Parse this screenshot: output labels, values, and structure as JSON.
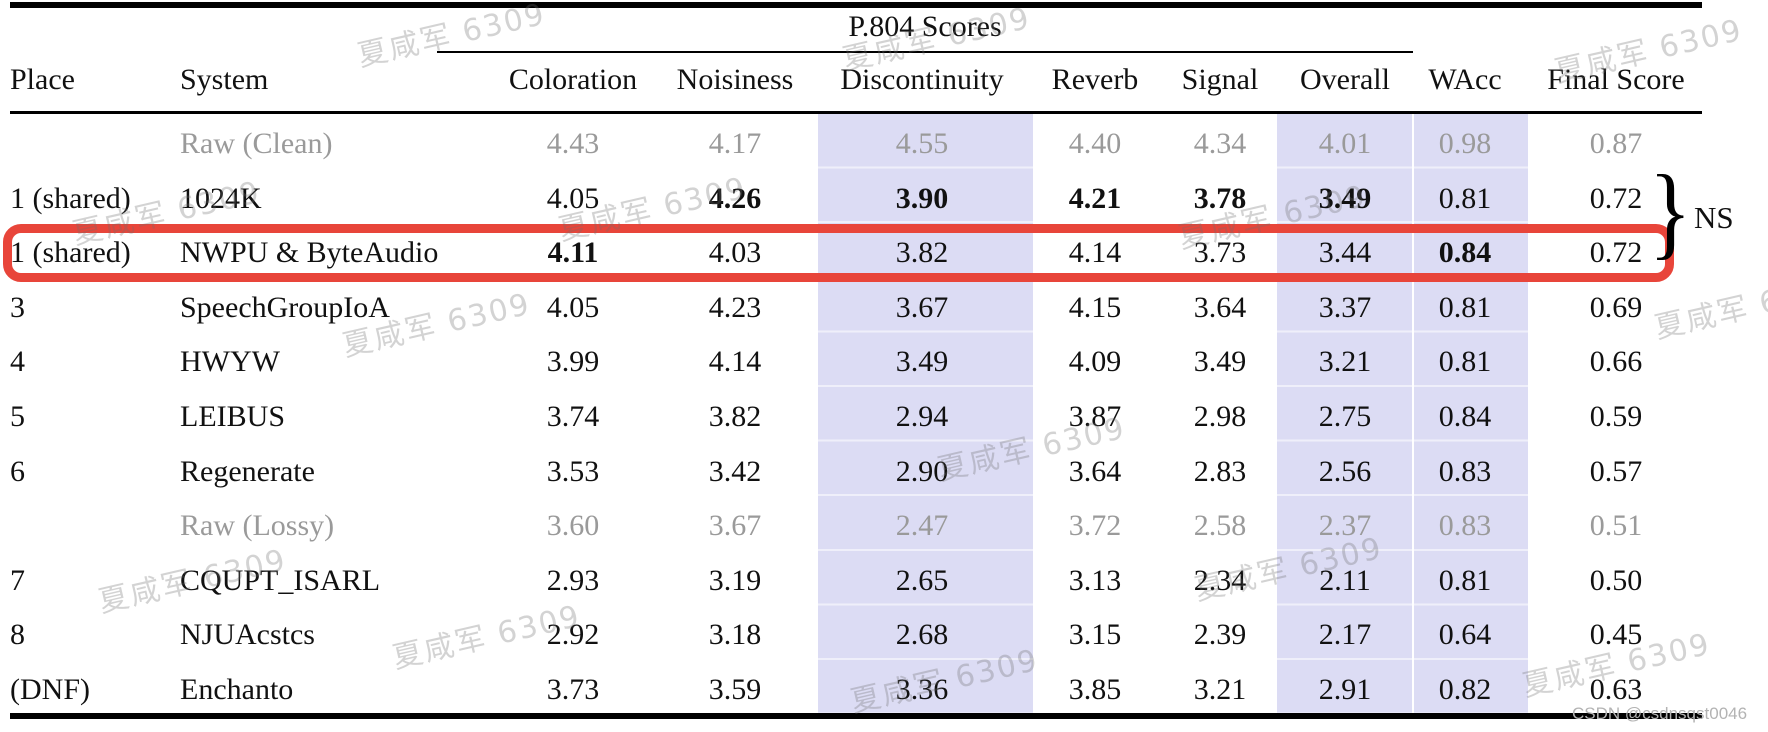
{
  "table": {
    "group_header": "P.804 Scores",
    "columns": [
      "Place",
      "System",
      "Coloration",
      "Noisiness",
      "Discontinuity",
      "Reverb",
      "Signal",
      "Overall",
      "WAcc",
      "Final Score"
    ],
    "banded_columns": [
      "Discontinuity",
      "Overall",
      "WAcc"
    ],
    "band_color": "#dcdcf4",
    "highlight_color": "#e8453a",
    "rows": [
      {
        "place": "",
        "system": "Raw (Clean)",
        "values": [
          "4.43",
          "4.17",
          "4.55",
          "4.40",
          "4.34",
          "4.01",
          "0.98",
          "0.87"
        ],
        "muted": true,
        "bold": []
      },
      {
        "place": "1 (shared)",
        "system": "1024K",
        "values": [
          "4.05",
          "4.26",
          "3.90",
          "4.21",
          "3.78",
          "3.49",
          "0.81",
          "0.72"
        ],
        "muted": false,
        "bold": [
          1,
          2,
          3,
          4,
          5
        ]
      },
      {
        "place": "1 (shared)",
        "system": "NWPU & ByteAudio",
        "values": [
          "4.11",
          "4.03",
          "3.82",
          "4.14",
          "3.73",
          "3.44",
          "0.84",
          "0.72"
        ],
        "muted": false,
        "bold": [
          0,
          6
        ],
        "highlighted": true
      },
      {
        "place": "3",
        "system": "SpeechGroupIoA",
        "values": [
          "4.05",
          "4.23",
          "3.67",
          "4.15",
          "3.64",
          "3.37",
          "0.81",
          "0.69"
        ],
        "muted": false,
        "bold": []
      },
      {
        "place": "4",
        "system": "HWYW",
        "values": [
          "3.99",
          "4.14",
          "3.49",
          "4.09",
          "3.49",
          "3.21",
          "0.81",
          "0.66"
        ],
        "muted": false,
        "bold": []
      },
      {
        "place": "5",
        "system": "LEIBUS",
        "values": [
          "3.74",
          "3.82",
          "2.94",
          "3.87",
          "2.98",
          "2.75",
          "0.84",
          "0.59"
        ],
        "muted": false,
        "bold": []
      },
      {
        "place": "6",
        "system": "Regenerate",
        "values": [
          "3.53",
          "3.42",
          "2.90",
          "3.64",
          "2.83",
          "2.56",
          "0.83",
          "0.57"
        ],
        "muted": false,
        "bold": []
      },
      {
        "place": "",
        "system": "Raw (Lossy)",
        "values": [
          "3.60",
          "3.67",
          "2.47",
          "3.72",
          "2.58",
          "2.37",
          "0.83",
          "0.51"
        ],
        "muted": true,
        "bold": []
      },
      {
        "place": "7",
        "system": "CQUPT_ISARL",
        "values": [
          "2.93",
          "3.19",
          "2.65",
          "3.13",
          "2.34",
          "2.11",
          "0.81",
          "0.50"
        ],
        "muted": false,
        "bold": []
      },
      {
        "place": "8",
        "system": "NJUAcstcs",
        "values": [
          "2.92",
          "3.18",
          "2.68",
          "3.15",
          "2.39",
          "2.17",
          "0.64",
          "0.45"
        ],
        "muted": false,
        "bold": []
      },
      {
        "place": "(DNF)",
        "system": "Enchanto",
        "values": [
          "3.73",
          "3.59",
          "3.36",
          "3.85",
          "3.21",
          "2.91",
          "0.82",
          "0.63"
        ],
        "muted": false,
        "bold": []
      }
    ]
  },
  "annotation": {
    "brace": "}",
    "label": "NS"
  },
  "watermark": {
    "text": "夏咸军 6309",
    "credit": "CSDN @csdnsqst0046"
  }
}
